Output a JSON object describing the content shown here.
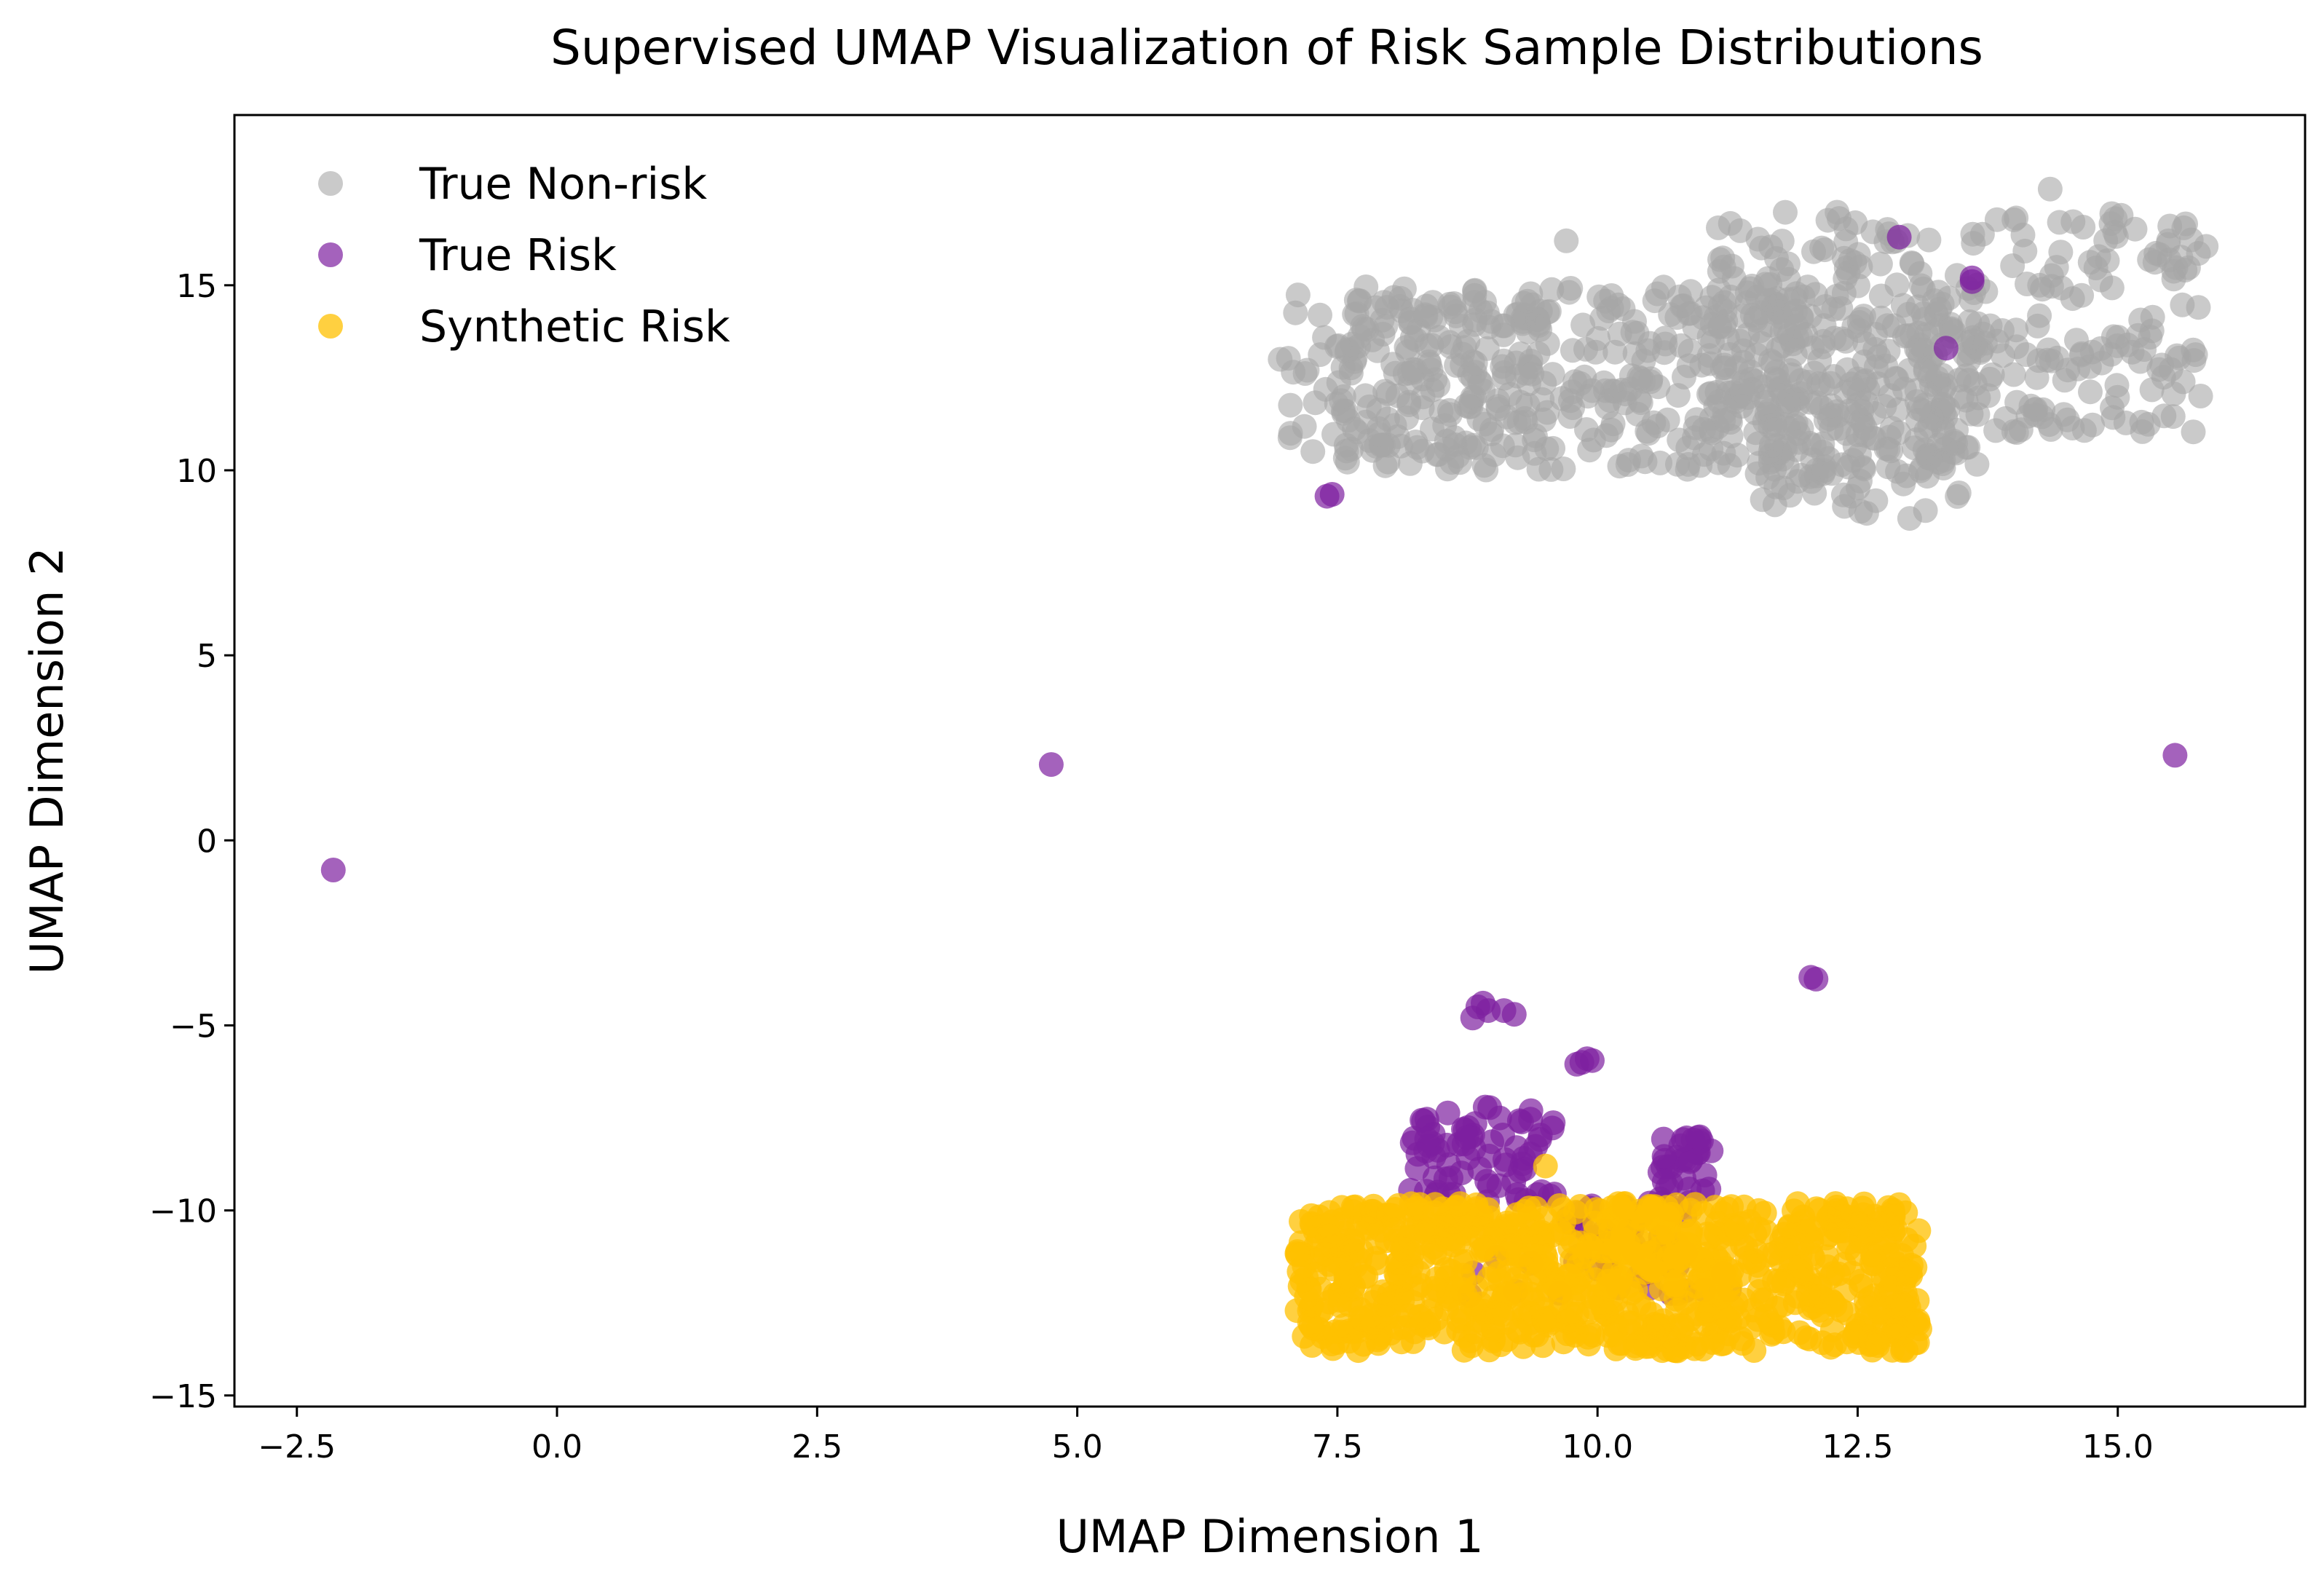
{
  "chart_data": {
    "type": "scatter",
    "title": "Supervised UMAP Visualization of Risk Sample Distributions",
    "xlabel": "UMAP Dimension 1",
    "ylabel": "UMAP Dimension 2",
    "xlim": [
      -3.1,
      16.8
    ],
    "ylim": [
      -15.3,
      19.6
    ],
    "xticks": [
      -2.5,
      0.0,
      2.5,
      5.0,
      7.5,
      10.0,
      12.5,
      15.0
    ],
    "xtick_labels": [
      "−2.5",
      "0.0",
      "2.5",
      "5.0",
      "7.5",
      "10.0",
      "12.5",
      "15.0"
    ],
    "yticks": [
      -15,
      -10,
      -5,
      0,
      5,
      10,
      15
    ],
    "ytick_labels": [
      "−15",
      "−10",
      "−5",
      "0",
      "5",
      "10",
      "15"
    ],
    "grid": false,
    "legend": "top-left",
    "series": [
      {
        "name": "True Non-risk",
        "color": "#a6a6a6",
        "alpha": 0.6,
        "clusters": [
          {
            "x": [
              7.5,
              13.8
            ],
            "y": [
              10.0,
              15.0
            ],
            "count": 520
          },
          {
            "x": [
              11.0,
              15.8
            ],
            "y": [
              11.0,
              17.0
            ],
            "count": 300
          },
          {
            "x": [
              7.0,
              9.5
            ],
            "y": [
              10.5,
              14.8
            ],
            "count": 90
          },
          {
            "x": [
              11.5,
              13.5
            ],
            "y": [
              8.8,
              11.0
            ],
            "count": 60
          }
        ],
        "points": [
          [
            6.95,
            13.0
          ],
          [
            7.05,
            11.0
          ],
          [
            9.7,
            16.2
          ],
          [
            14.35,
            17.6
          ],
          [
            15.5,
            16.6
          ],
          [
            15.85,
            16.05
          ],
          [
            13.0,
            8.7
          ]
        ]
      },
      {
        "name": "True Risk",
        "color": "#7e1fa0",
        "alpha": 0.7,
        "points": [
          [
            -2.15,
            -0.8
          ],
          [
            4.75,
            2.05
          ],
          [
            15.55,
            2.3
          ],
          [
            7.4,
            9.3
          ],
          [
            7.45,
            9.35
          ],
          [
            12.9,
            16.3
          ],
          [
            13.6,
            15.1
          ],
          [
            13.6,
            15.2
          ],
          [
            13.35,
            13.3
          ],
          [
            12.05,
            -3.7
          ],
          [
            12.1,
            -3.75
          ],
          [
            8.85,
            -4.5
          ],
          [
            8.9,
            -4.4
          ],
          [
            8.8,
            -4.8
          ],
          [
            8.95,
            -4.6
          ],
          [
            9.1,
            -4.6
          ],
          [
            9.2,
            -4.7
          ],
          [
            9.85,
            -6.0
          ],
          [
            9.9,
            -5.9
          ],
          [
            9.8,
            -6.05
          ],
          [
            9.95,
            -5.95
          ]
        ],
        "clusters": [
          {
            "x": [
              8.2,
              9.6
            ],
            "y": [
              -9.8,
              -7.2
            ],
            "count": 75
          },
          {
            "x": [
              10.6,
              11.1
            ],
            "y": [
              -9.8,
              -8.0
            ],
            "count": 35
          },
          {
            "x": [
              9.7,
              10.9
            ],
            "y": [
              -11.8,
              -9.8
            ],
            "count": 40
          },
          {
            "x": [
              8.6,
              11.3
            ],
            "y": [
              -12.3,
              -11.0
            ],
            "count": 18
          }
        ]
      },
      {
        "name": "Synthetic Risk",
        "color": "#ffc000",
        "alpha": 0.75,
        "clusters": [
          {
            "x": [
              7.1,
              13.1
            ],
            "y": [
              -13.8,
              -9.8
            ],
            "count": 900
          }
        ],
        "points": [
          [
            9.5,
            -8.8
          ],
          [
            11.7,
            -11.9
          ],
          [
            9.05,
            -11.7
          ]
        ]
      }
    ]
  }
}
